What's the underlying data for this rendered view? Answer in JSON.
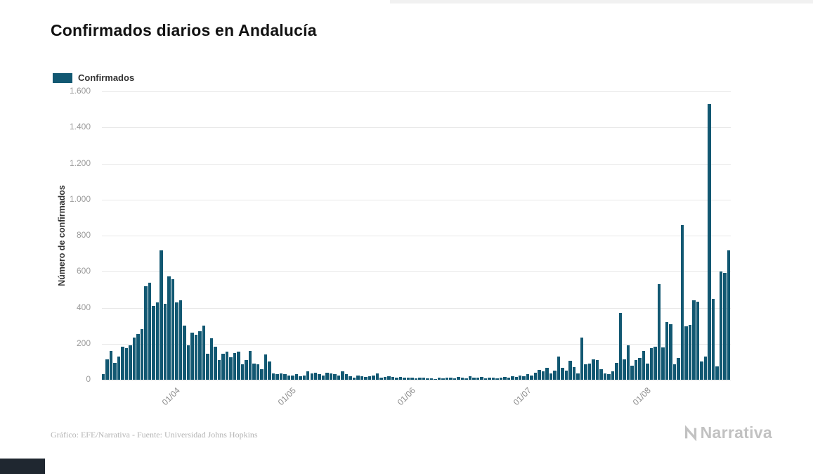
{
  "page": {
    "title": "Confirmados diarios en Andalucía"
  },
  "legend": {
    "label": "Confirmados"
  },
  "footer": {
    "credit": "Gráfico: EFE/Narrativa - Fuente: Universidad Johns Hopkins",
    "brand": "Narrativa"
  },
  "colors": {
    "bar": "#125872",
    "grid": "#e7e7e7",
    "tick_label": "#9b9b9b",
    "credit": "#b5b5b5",
    "brand": "#c2c2c2"
  },
  "chart_data": {
    "type": "bar",
    "title": "Confirmados diarios en Andalucía",
    "xlabel": "",
    "ylabel": "Número de confirmados",
    "legend": [
      "Confirmados"
    ],
    "legend_position": "top-left",
    "grid": true,
    "ylim": [
      0,
      1600
    ],
    "y_ticks": [
      {
        "label": "0",
        "value": 0
      },
      {
        "label": "200",
        "value": 200
      },
      {
        "label": "400",
        "value": 400
      },
      {
        "label": "600",
        "value": 600
      },
      {
        "label": "800",
        "value": 800
      },
      {
        "label": "1.000",
        "value": 1000
      },
      {
        "label": "1.200",
        "value": 1200
      },
      {
        "label": "1.400",
        "value": 1400
      },
      {
        "label": "1.600",
        "value": 1600
      }
    ],
    "x_ticks": [
      {
        "label": "01/04",
        "index": 19
      },
      {
        "label": "01/05",
        "index": 49
      },
      {
        "label": "01/06",
        "index": 80
      },
      {
        "label": "01/07",
        "index": 110
      },
      {
        "label": "01/08",
        "index": 141
      }
    ],
    "values": [
      30,
      115,
      160,
      95,
      130,
      185,
      175,
      190,
      235,
      255,
      280,
      520,
      540,
      410,
      430,
      720,
      420,
      575,
      560,
      430,
      440,
      300,
      190,
      260,
      250,
      270,
      300,
      145,
      230,
      185,
      110,
      145,
      155,
      125,
      150,
      155,
      85,
      110,
      160,
      90,
      85,
      60,
      140,
      100,
      35,
      30,
      35,
      30,
      25,
      25,
      30,
      20,
      25,
      45,
      35,
      40,
      30,
      25,
      40,
      35,
      30,
      25,
      45,
      30,
      20,
      10,
      25,
      20,
      15,
      20,
      25,
      35,
      10,
      15,
      20,
      15,
      10,
      15,
      10,
      12,
      10,
      8,
      12,
      10,
      6,
      8,
      5,
      10,
      8,
      12,
      10,
      8,
      15,
      10,
      8,
      20,
      12,
      10,
      15,
      8,
      10,
      12,
      8,
      10,
      15,
      10,
      20,
      15,
      25,
      20,
      30,
      25,
      40,
      55,
      45,
      65,
      35,
      50,
      130,
      65,
      50,
      105,
      70,
      35,
      235,
      85,
      90,
      115,
      110,
      60,
      35,
      30,
      45,
      95,
      370,
      115,
      190,
      80,
      110,
      120,
      160,
      90,
      175,
      185,
      530,
      180,
      320,
      310,
      85,
      120,
      860,
      295,
      305,
      440,
      435,
      100,
      130,
      1530,
      450,
      75,
      600,
      595,
      720
    ]
  }
}
